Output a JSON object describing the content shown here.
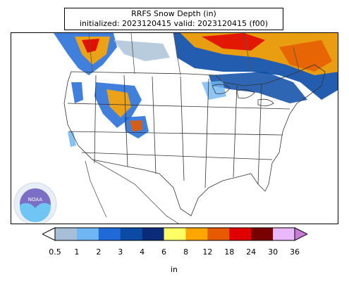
{
  "title": {
    "line1": "RRFS Snow Depth (in)",
    "line2": "initialized: 2023120415 valid: 2023120415 (f00)"
  },
  "colorbar": {
    "units": "in",
    "ticks": [
      "0.5",
      "1",
      "2",
      "3",
      "4",
      "6",
      "8",
      "12",
      "18",
      "24",
      "30",
      "36"
    ],
    "colors": [
      "#a7bfd6",
      "#6fb6f4",
      "#1f6ad6",
      "#0b4ba6",
      "#0a2a7a",
      "#ffff66",
      "#ffa500",
      "#e65a00",
      "#e00000",
      "#7a0000",
      "#e8b8f8"
    ],
    "under_color": "#ffffff",
    "over_color": "#c77bd6"
  },
  "logo": {
    "name": "NOAA"
  }
}
